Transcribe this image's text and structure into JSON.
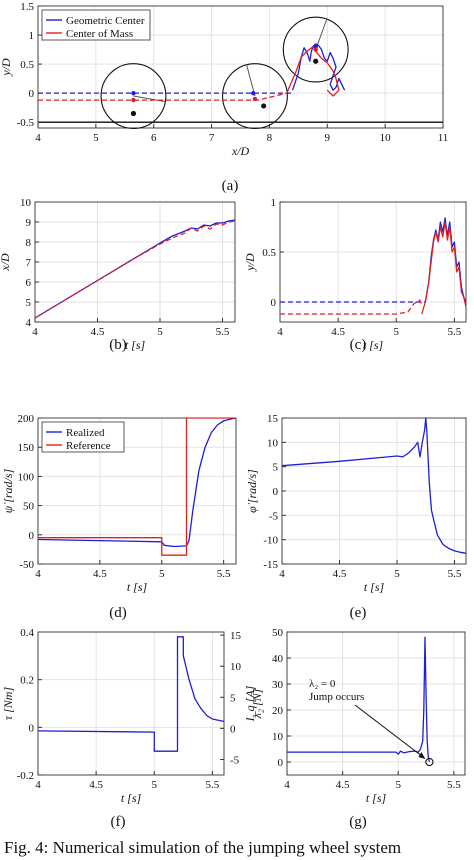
{
  "caption": "Fig. 4: Numerical simulation of the jumping wheel system",
  "colors": {
    "blue": "#1f1fd6",
    "red": "#e02020",
    "axis": "#333333"
  },
  "chart_data": [
    {
      "id": "a",
      "type": "line",
      "panel_label": "(a)",
      "xlabel": "x/D",
      "ylabel": "y/D",
      "xlim": [
        4,
        11
      ],
      "ylim": [
        -0.6,
        1.5
      ],
      "xticks": [
        4,
        5,
        6,
        7,
        8,
        9,
        10,
        11
      ],
      "yticks": [
        -0.5,
        0,
        0.5,
        1,
        1.5
      ],
      "legend": {
        "position": "top-left",
        "entries": [
          "Geometric Center",
          "Center of Mass"
        ]
      },
      "series": [
        {
          "name": "Geometric Center",
          "color": "blue",
          "dash": true,
          "x": [
            4,
            5,
            6,
            7,
            8,
            8.3,
            8.4
          ],
          "y": [
            0,
            0,
            0,
            0,
            0,
            0,
            0
          ]
        },
        {
          "name": "Geometric Center",
          "color": "blue",
          "dash": false,
          "x": [
            8.4,
            8.5,
            8.55,
            8.6,
            8.65,
            8.7,
            8.72,
            8.75,
            8.8,
            8.85,
            8.9,
            8.95,
            9.0,
            9.05,
            9.1,
            9.15,
            9.1,
            9.05,
            9.1,
            9.15,
            9.2,
            9.25,
            9.3
          ],
          "y": [
            0.05,
            0.35,
            0.62,
            0.78,
            0.7,
            0.55,
            0.7,
            0.8,
            0.85,
            0.82,
            0.75,
            0.6,
            0.55,
            0.7,
            0.6,
            0.45,
            0.3,
            0.15,
            0.05,
            0.1,
            0.25,
            0.15,
            0.05
          ]
        },
        {
          "name": "Center of Mass",
          "color": "red",
          "dash": true,
          "x": [
            4,
            5,
            6,
            7,
            7.8,
            8.1,
            8.3
          ],
          "y": [
            -0.12,
            -0.12,
            -0.12,
            -0.12,
            -0.12,
            -0.05,
            0.0
          ]
        },
        {
          "name": "Center of Mass",
          "color": "red",
          "dash": false,
          "x": [
            8.3,
            8.45,
            8.55,
            8.65,
            8.75,
            8.8,
            8.9,
            9.0,
            9.1,
            9.15,
            9.2,
            9.1,
            9.0
          ],
          "y": [
            0.0,
            0.35,
            0.62,
            0.72,
            0.8,
            0.72,
            0.6,
            0.52,
            0.38,
            0.25,
            0.05,
            -0.05,
            0.05
          ]
        }
      ],
      "wheels": [
        {
          "cx": 5.65,
          "cy": -0.05,
          "r": 0.56,
          "spoke_angle": -10,
          "com": [
            5.65,
            -0.35
          ],
          "geo": [
            5.65,
            0
          ],
          "mark": [
            5.65,
            -0.12
          ]
        },
        {
          "cx": 7.75,
          "cy": -0.05,
          "r": 0.56,
          "spoke_angle": 105,
          "com": [
            7.9,
            -0.22
          ],
          "geo": [
            7.72,
            0
          ],
          "mark": [
            7.75,
            -0.1
          ]
        },
        {
          "cx": 8.8,
          "cy": 0.75,
          "r": 0.56,
          "spoke_angle": 70,
          "com": [
            8.8,
            0.55
          ],
          "geo": [
            8.8,
            0.8
          ],
          "mark": [
            8.8,
            0.75
          ]
        }
      ],
      "ground_y": -0.5
    },
    {
      "id": "b",
      "type": "line",
      "panel_label": "(b)",
      "xlabel": "t [s]",
      "ylabel": "x/D",
      "xlim": [
        4,
        5.6
      ],
      "ylim": [
        4,
        10
      ],
      "xticks": [
        4,
        4.5,
        5,
        5.5
      ],
      "yticks": [
        4,
        5,
        6,
        7,
        8,
        9,
        10
      ],
      "series": [
        {
          "name": "",
          "color": "blue",
          "dash": false,
          "x": [
            4,
            4.2,
            4.4,
            4.6,
            4.8,
            5.0,
            5.1,
            5.2,
            5.25,
            5.3,
            5.35,
            5.4,
            5.45,
            5.5,
            5.55,
            5.6
          ],
          "y": [
            4.2,
            4.95,
            5.7,
            6.45,
            7.2,
            7.95,
            8.3,
            8.55,
            8.7,
            8.65,
            8.85,
            8.8,
            8.95,
            8.95,
            9.05,
            9.1
          ]
        },
        {
          "name": "",
          "color": "red",
          "dash": true,
          "x": [
            4,
            4.2,
            4.4,
            4.6,
            4.8,
            5.0,
            5.1,
            5.2,
            5.25,
            5.3,
            5.35,
            5.4,
            5.45,
            5.5,
            5.55,
            5.6
          ],
          "y": [
            4.2,
            4.95,
            5.7,
            6.45,
            7.2,
            7.9,
            8.2,
            8.45,
            8.7,
            8.55,
            8.8,
            8.65,
            8.9,
            8.85,
            9.0,
            9.05
          ]
        }
      ]
    },
    {
      "id": "c",
      "type": "line",
      "panel_label": "(c)",
      "xlabel": "t [s]",
      "ylabel": "y/D",
      "xlim": [
        4,
        5.6
      ],
      "ylim": [
        -0.2,
        1
      ],
      "xticks": [
        4,
        4.5,
        5,
        5.5
      ],
      "yticks": [
        0,
        0.5,
        1
      ],
      "series": [
        {
          "name": "",
          "color": "blue",
          "dash": true,
          "x": [
            4,
            4.5,
            5.0,
            5.2,
            5.25
          ],
          "y": [
            0,
            0,
            0,
            0,
            0
          ]
        },
        {
          "name": "",
          "color": "blue",
          "dash": false,
          "x": [
            5.25,
            5.28,
            5.3,
            5.32,
            5.34,
            5.36,
            5.38,
            5.4,
            5.42,
            5.44,
            5.46,
            5.48,
            5.5,
            5.52,
            5.54,
            5.56,
            5.58,
            5.6
          ],
          "y": [
            0,
            0.2,
            0.45,
            0.62,
            0.72,
            0.62,
            0.8,
            0.7,
            0.84,
            0.66,
            0.8,
            0.55,
            0.6,
            0.35,
            0.4,
            0.15,
            0.05,
            0
          ]
        },
        {
          "name": "",
          "color": "red",
          "dash": true,
          "x": [
            4,
            4.5,
            5.0,
            5.1,
            5.15,
            5.2,
            5.22
          ],
          "y": [
            -0.12,
            -0.12,
            -0.12,
            -0.1,
            -0.02,
            0.02,
            -0.02
          ]
        },
        {
          "name": "",
          "color": "red",
          "dash": false,
          "x": [
            5.22,
            5.25,
            5.28,
            5.3,
            5.32,
            5.34,
            5.36,
            5.38,
            5.4,
            5.42,
            5.44,
            5.46,
            5.48,
            5.5,
            5.52,
            5.54,
            5.56,
            5.58,
            5.6
          ],
          "y": [
            -0.12,
            0.0,
            0.2,
            0.4,
            0.6,
            0.7,
            0.6,
            0.75,
            0.65,
            0.8,
            0.62,
            0.75,
            0.5,
            0.55,
            0.3,
            0.35,
            0.1,
            0.05,
            -0.05
          ]
        }
      ]
    },
    {
      "id": "d",
      "type": "line",
      "panel_label": "(d)",
      "xlabel": "t [s]",
      "ylabel": "ψ̇ [rad/s]",
      "xlim": [
        4,
        5.6
      ],
      "ylim": [
        -50,
        200
      ],
      "xticks": [
        4,
        4.5,
        5,
        5.5
      ],
      "yticks": [
        -50,
        0,
        50,
        100,
        150,
        200
      ],
      "legend": {
        "position": "top-left",
        "entries": [
          "Realized",
          "Reference"
        ]
      },
      "series": [
        {
          "name": "Realized",
          "color": "blue",
          "dash": false,
          "x": [
            4,
            4.5,
            5.0,
            5.02,
            5.1,
            5.2,
            5.22,
            5.25,
            5.3,
            5.35,
            5.4,
            5.45,
            5.5,
            5.55,
            5.6
          ],
          "y": [
            -8,
            -10,
            -12,
            -18,
            -20,
            -19,
            -10,
            40,
            110,
            150,
            175,
            188,
            195,
            198,
            200
          ]
        },
        {
          "name": "Reference",
          "color": "red",
          "dash": false,
          "x": [
            4,
            5.0,
            5.0,
            5.2,
            5.2,
            5.6
          ],
          "y": [
            -5,
            -5,
            -35,
            -35,
            200,
            200
          ]
        }
      ]
    },
    {
      "id": "e",
      "type": "line",
      "panel_label": "(e)",
      "xlabel": "t [s]",
      "ylabel": "φ̇ [rad/s]",
      "xlim": [
        4,
        5.6
      ],
      "ylim": [
        -15,
        15
      ],
      "xticks": [
        4,
        4.5,
        5,
        5.5
      ],
      "yticks": [
        -15,
        -10,
        -5,
        0,
        5,
        10,
        15
      ],
      "series": [
        {
          "name": "",
          "color": "blue",
          "dash": false,
          "x": [
            4,
            4.5,
            5.0,
            5.05,
            5.1,
            5.15,
            5.18,
            5.2,
            5.22,
            5.24,
            5.25,
            5.26,
            5.28,
            5.3,
            5.35,
            5.4,
            5.45,
            5.5,
            5.55,
            5.6
          ],
          "y": [
            5.2,
            6.1,
            7.2,
            7.0,
            7.8,
            9.0,
            10.0,
            7.0,
            10.0,
            12.5,
            15,
            12,
            2,
            -4,
            -9,
            -11,
            -11.8,
            -12.3,
            -12.6,
            -12.8
          ]
        }
      ]
    },
    {
      "id": "f",
      "type": "line",
      "panel_label": "(f)",
      "xlabel": "t [s]",
      "ylabel": "τ [Nm]",
      "ylabel_right": "I_q [A]",
      "xlim": [
        4,
        5.6
      ],
      "ylim": [
        -0.2,
        0.4
      ],
      "xticks": [
        4,
        4.5,
        5,
        5.5
      ],
      "yticks": [
        -0.2,
        0,
        0.2,
        0.4
      ],
      "yticks_right": [
        -5,
        0,
        5,
        10,
        15
      ],
      "series": [
        {
          "name": "",
          "color": "blue",
          "dash": false,
          "x": [
            4,
            5.0,
            5.0,
            5.2,
            5.2,
            5.25,
            5.25,
            5.3,
            5.35,
            5.4,
            5.45,
            5.5,
            5.55,
            5.6
          ],
          "y": [
            -0.015,
            -0.02,
            -0.1,
            -0.1,
            0.38,
            0.38,
            0.3,
            0.2,
            0.12,
            0.08,
            0.05,
            0.035,
            0.03,
            0.025
          ]
        }
      ]
    },
    {
      "id": "g",
      "type": "line",
      "panel_label": "(g)",
      "xlabel": "t [s]",
      "ylabel": "λ₂ [N]",
      "xlim": [
        4,
        5.6
      ],
      "ylim": [
        -5,
        50
      ],
      "xticks": [
        4,
        4.5,
        5,
        5.5
      ],
      "yticks": [
        0,
        10,
        20,
        30,
        40,
        50
      ],
      "annotation": {
        "text_line1": "λ₂ = 0",
        "text_line2": "Jump occurs",
        "point": [
          5.28,
          0
        ]
      },
      "series": [
        {
          "name": "",
          "color": "blue",
          "dash": false,
          "x": [
            4,
            4.5,
            4.98,
            5.0,
            5.02,
            5.05,
            5.1,
            5.15,
            5.18,
            5.2,
            5.22,
            5.23,
            5.24,
            5.25,
            5.26,
            5.27,
            5.28
          ],
          "y": [
            3.8,
            3.8,
            3.8,
            3.0,
            4.2,
            3.5,
            4.0,
            4.2,
            3.8,
            5.0,
            8.0,
            20,
            48,
            25,
            8,
            2,
            0
          ]
        }
      ]
    }
  ]
}
